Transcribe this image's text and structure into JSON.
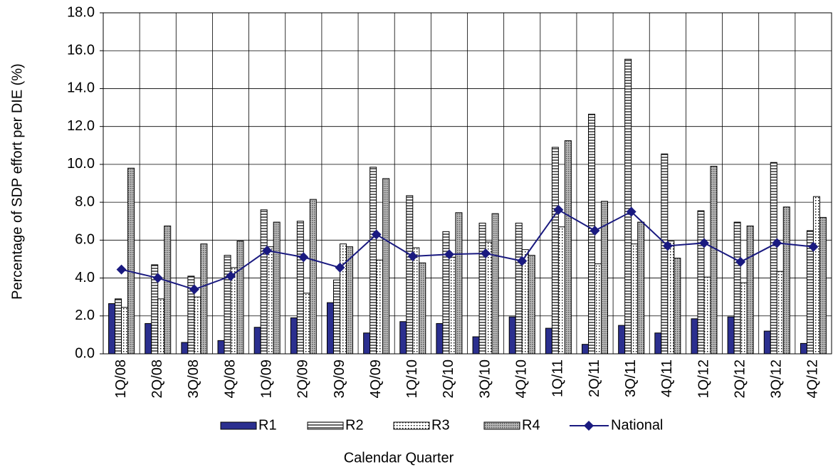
{
  "chart_data": {
    "type": "bar",
    "x_label": "Calendar Quarter",
    "y_label": "Percentage of SDP effort  per DIE (%)",
    "categories": [
      "1Q/08",
      "2Q/08",
      "3Q/08",
      "4Q/08",
      "1Q/09",
      "2Q/09",
      "3Q/09",
      "4Q/09",
      "1Q/10",
      "2Q/10",
      "3Q/10",
      "4Q/10",
      "1Q/11",
      "2Q/11",
      "3Q/11",
      "4Q/11",
      "1Q/12",
      "2Q/12",
      "3Q/12",
      "4Q/12"
    ],
    "series": [
      {
        "name": "R1",
        "color": "#2b2f8f",
        "pattern": "solid",
        "values": [
          2.65,
          1.6,
          0.6,
          0.7,
          1.4,
          1.9,
          2.7,
          1.1,
          1.7,
          1.6,
          0.9,
          1.95,
          1.35,
          0.5,
          1.5,
          1.1,
          1.85,
          1.95,
          1.2,
          0.55
        ]
      },
      {
        "name": "R2",
        "color": "#ffffff",
        "pattern": "horizontal-lines",
        "values": [
          2.9,
          4.7,
          4.1,
          5.2,
          7.6,
          7.0,
          3.9,
          9.85,
          8.35,
          6.45,
          6.9,
          6.9,
          10.9,
          12.65,
          15.55,
          10.55,
          7.55,
          6.95,
          10.1,
          6.5
        ]
      },
      {
        "name": "R3",
        "color": "#ffffff",
        "pattern": "dots",
        "values": [
          2.45,
          2.9,
          3.0,
          4.55,
          5.65,
          3.2,
          5.8,
          4.95,
          5.6,
          5.1,
          5.9,
          5.5,
          6.7,
          4.75,
          5.8,
          5.95,
          4.05,
          3.75,
          4.35,
          8.3
        ]
      },
      {
        "name": "R4",
        "color": "#999999",
        "pattern": "crosshatch",
        "values": [
          9.8,
          6.75,
          5.8,
          5.95,
          6.95,
          8.15,
          5.65,
          9.25,
          4.8,
          7.45,
          7.4,
          5.2,
          11.25,
          8.05,
          6.95,
          5.05,
          9.9,
          6.75,
          7.75,
          7.2
        ]
      },
      {
        "name": "National",
        "color": "#1a1a80",
        "type": "line",
        "marker": "diamond",
        "values": [
          4.45,
          4.0,
          3.4,
          4.1,
          5.45,
          5.1,
          4.55,
          6.3,
          5.15,
          5.25,
          5.3,
          4.9,
          7.6,
          6.5,
          7.5,
          5.7,
          5.85,
          4.85,
          5.85,
          5.65
        ]
      }
    ],
    "ylim": [
      0,
      18
    ],
    "yticks": [
      {
        "value": 0,
        "label": "0.0"
      },
      {
        "value": 2,
        "label": "2.0"
      },
      {
        "value": 4,
        "label": "4.0"
      },
      {
        "value": 6,
        "label": "6.0"
      },
      {
        "value": 8,
        "label": "8.0"
      },
      {
        "value": 10,
        "label": "10.0"
      },
      {
        "value": 12,
        "label": "12.0"
      },
      {
        "value": 14,
        "label": "14.0"
      },
      {
        "value": 16,
        "label": "16.0"
      },
      {
        "value": 18,
        "label": "18.0"
      }
    ],
    "grid": true,
    "legend": "bottom"
  }
}
